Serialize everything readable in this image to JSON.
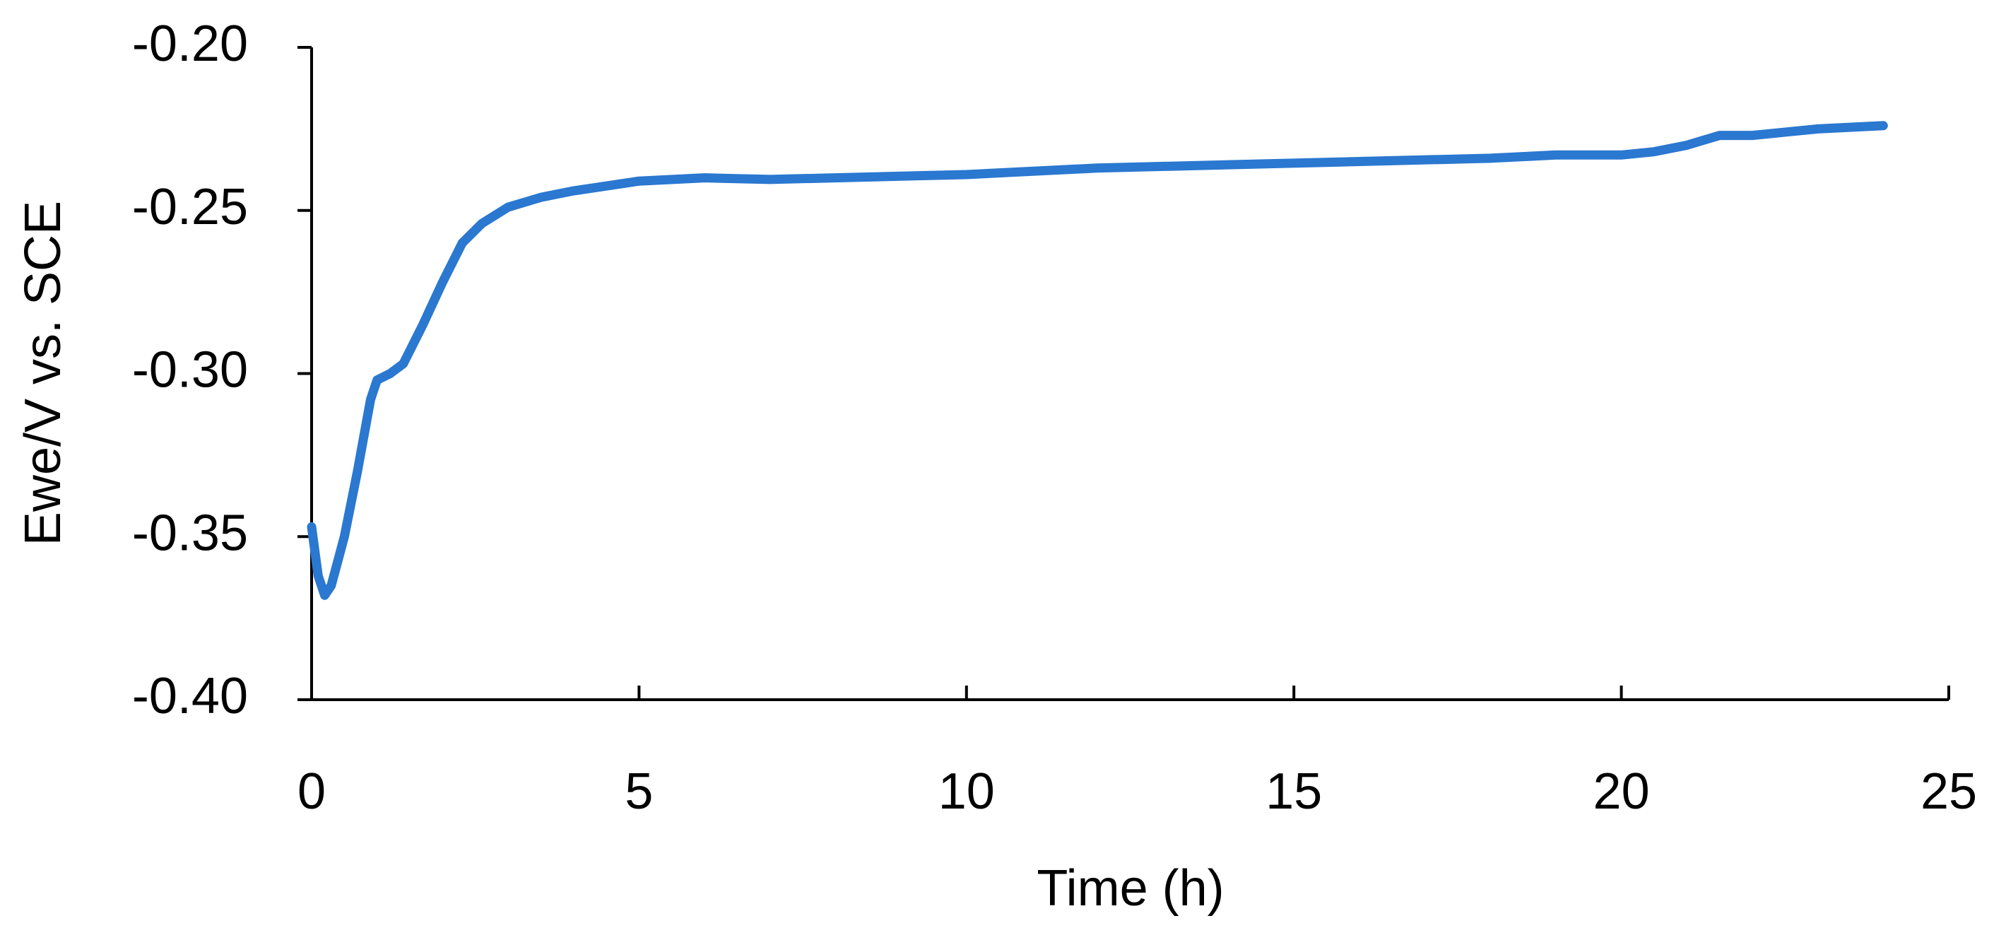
{
  "chart_data": {
    "type": "line",
    "x_label": "Time (h)",
    "y_label": "Ewe/V vs. SCE",
    "x": [
      0,
      0.1,
      0.2,
      0.3,
      0.5,
      0.7,
      0.9,
      1.0,
      1.2,
      1.4,
      1.7,
      2.0,
      2.3,
      2.6,
      3.0,
      3.5,
      4.0,
      5,
      6,
      7,
      8,
      10,
      12,
      14,
      16,
      18,
      19,
      20,
      20.5,
      21,
      21.5,
      22,
      23,
      24
    ],
    "series": [
      {
        "color": "#2a78d0",
        "values": [
          -0.347,
          -0.362,
          -0.368,
          -0.365,
          -0.35,
          -0.33,
          -0.308,
          -0.302,
          -0.3,
          -0.297,
          -0.285,
          -0.272,
          -0.26,
          -0.254,
          -0.249,
          -0.246,
          -0.244,
          -0.241,
          -0.24,
          -0.2405,
          -0.24,
          -0.239,
          -0.237,
          -0.236,
          -0.235,
          -0.234,
          -0.233,
          -0.233,
          -0.232,
          -0.23,
          -0.227,
          -0.227,
          -0.225,
          -0.224
        ]
      }
    ],
    "xlim": [
      0,
      25
    ],
    "xticks": [
      0,
      5,
      10,
      15,
      20,
      25
    ],
    "ylim": [
      -0.4,
      -0.2
    ],
    "yticks": [
      {
        "value": -0.4,
        "label": "-0.40"
      },
      -0.35,
      {
        "value": -0.3,
        "label": "-0.30"
      },
      -0.25,
      {
        "value": -0.2,
        "label": "-0.20"
      }
    ]
  }
}
